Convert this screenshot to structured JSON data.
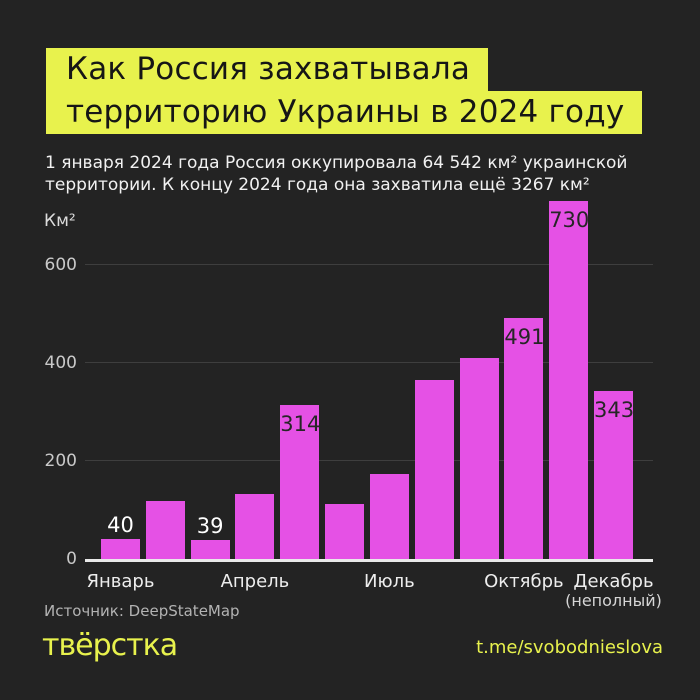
{
  "header": {
    "title_line1": "Как Россия захватывала",
    "title_line2": "территорию Украины в 2024 году",
    "subtitle_line1": "1 января 2024 года Россия оккупировала 64 542 км² украинской",
    "subtitle_line2": "территории. К концу 2024 года она захватила ещё 3267 км²"
  },
  "chart_data": {
    "type": "bar",
    "title": "Как Россия захватывала территорию Украины в 2024 году",
    "unit_label": "Км²",
    "categories": [
      "Январь",
      "Февраль",
      "Март",
      "Апрель",
      "Май",
      "Июнь",
      "Июль",
      "Август",
      "Сентябрь",
      "Октябрь",
      "Ноябрь",
      "Декабрь"
    ],
    "values": [
      40,
      118,
      39,
      132,
      314,
      112,
      173,
      365,
      410,
      491,
      730,
      343
    ],
    "labeled_points": [
      {
        "index": 0,
        "label": "40",
        "placement": "above"
      },
      {
        "index": 2,
        "label": "39",
        "placement": "above"
      },
      {
        "index": 4,
        "label": "314",
        "placement": "inside"
      },
      {
        "index": 9,
        "label": "491",
        "placement": "inside"
      },
      {
        "index": 10,
        "label": "730",
        "placement": "inside"
      },
      {
        "index": 11,
        "label": "343",
        "placement": "inside"
      }
    ],
    "x_ticks": [
      {
        "index": 0,
        "label": "Январь"
      },
      {
        "index": 3,
        "label": "Апрель"
      },
      {
        "index": 6,
        "label": "Июль"
      },
      {
        "index": 9,
        "label": "Октябрь"
      },
      {
        "index": 11,
        "label": "Декабрь",
        "sublabel": "(неполный)"
      }
    ],
    "y_ticks": [
      0,
      200,
      400,
      600
    ],
    "ylim": [
      0,
      760
    ],
    "grid": true,
    "legend": null,
    "bar_color": "#e551e5"
  },
  "footer": {
    "source": "Источник: DeepStateMap",
    "logo": "твёрстка",
    "link": "t.me/svobodnieslova"
  },
  "colors": {
    "background": "#232323",
    "accent_yellow": "#e8f24d",
    "bar_magenta": "#e551e5",
    "gridline": "#3e3e3e",
    "axis": "#e9e9e9"
  }
}
